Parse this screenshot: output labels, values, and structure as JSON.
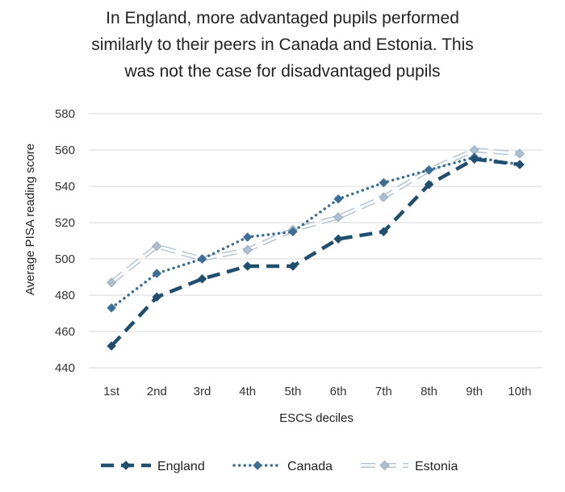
{
  "chart_data": {
    "type": "line",
    "title_lines": [
      "In England, more advantaged pupils performed",
      "similarly to their peers in Canada and Estonia. This",
      "was not the case for disadvantaged pupils"
    ],
    "xlabel": "ESCS deciles",
    "ylabel": "Average PISA reading score",
    "categories": [
      "1st",
      "2nd",
      "3rd",
      "4th",
      "5th",
      "6th",
      "7th",
      "8th",
      "9th",
      "10th"
    ],
    "ylim": [
      440,
      580
    ],
    "yticks": [
      440,
      460,
      480,
      500,
      520,
      540,
      560,
      580
    ],
    "grid": true,
    "legend_position": "bottom",
    "series": [
      {
        "name": "England",
        "color": "#1f4e6e",
        "style": "dashed",
        "values": [
          452,
          479,
          489,
          496,
          496,
          511,
          515,
          541,
          555,
          552
        ]
      },
      {
        "name": "Canada",
        "color": "#3c6e96",
        "style": "dotted",
        "values": [
          473,
          492,
          500,
          512,
          515,
          533,
          542,
          549,
          556,
          552
        ]
      },
      {
        "name": "Estonia",
        "color": "#b8c8d8",
        "style": "double",
        "values": [
          487,
          507,
          500,
          505,
          516,
          523,
          534,
          549,
          560,
          558
        ]
      }
    ]
  }
}
